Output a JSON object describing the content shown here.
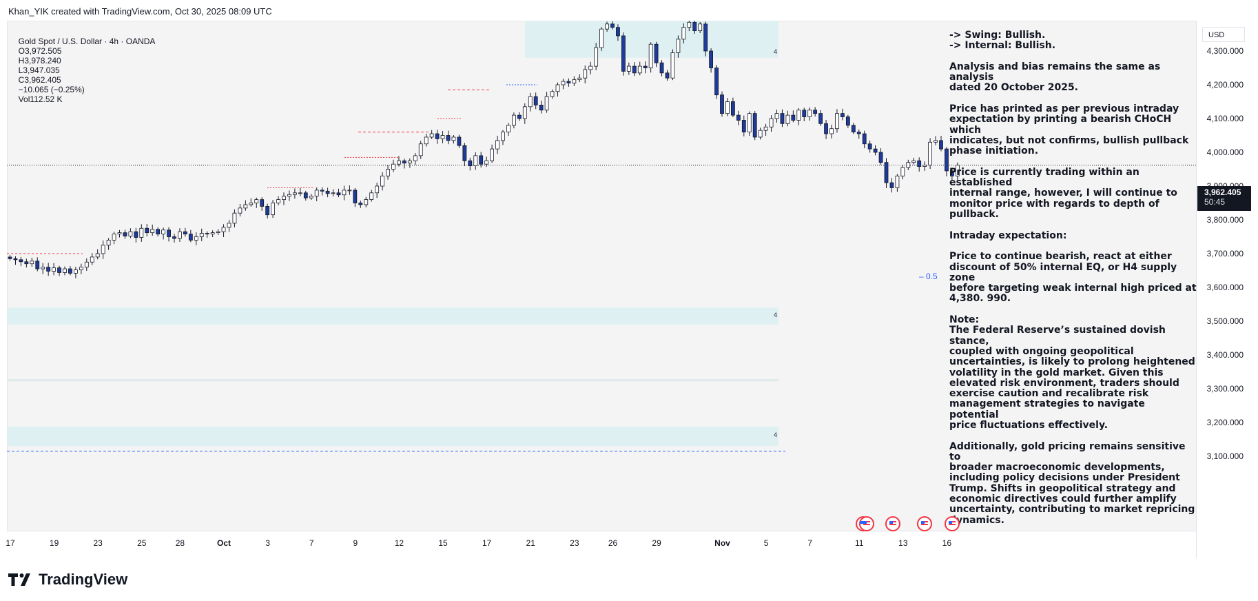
{
  "credit": "Khan_YIK created with TradingView.com, Oct 30, 2025 08:09 UTC",
  "header": {
    "symbol": "Gold Spot / U.S. Dollar · 4h · OANDA",
    "open": "O3,972.505",
    "high": "H3,978.240",
    "low": "L3,947.035",
    "close": "C3,962.405",
    "change": "−10.065 (−0.25%)",
    "volume": "Vol112.52 K"
  },
  "currency": "USD",
  "last_price": {
    "price": "3,962.405",
    "countdown": "50:45"
  },
  "half_label": "0.5",
  "zone_labels": [
    "4",
    "4",
    "4"
  ],
  "logo": "TradingView",
  "colors": {
    "up": "#ffffff",
    "down": "#1e3a9a",
    "wick": "#131722",
    "zone": "#dff0f2",
    "bos": "#f23645",
    "dash": "#2962ff"
  },
  "annotation": [
    [
      "-> Swing:  Bullish.",
      "-> Internal:  Bullish."
    ],
    [
      "Analysis and bias remains the same as analysis",
      "dated 20 October 2025."
    ],
    [
      "Price has printed as per previous intraday",
      "expectation by printing a bearish CHoCH which",
      "indicates, but not confirms, bullish pullback",
      "phase initiation."
    ],
    [
      "Price is currently trading within an established",
      "internal range, however, I will continue to",
      "monitor price with regards to depth of",
      "pullback."
    ],
    [
      "Intraday expectation:"
    ],
    [
      "Price to continue bearish, react at either",
      "discount of 50% internal EQ, or H4 supply zone",
      "before targeting weak internal high priced at",
      "4,380. 990."
    ],
    [
      "Note:",
      "The Federal Reserve’s sustained dovish stance,",
      "coupled with ongoing geopolitical",
      "uncertainties, is likely to prolong heightened",
      "volatility in the gold market. Given this",
      "elevated risk environment, traders should",
      "exercise caution and recalibrate risk",
      "management strategies to navigate potential",
      "price fluctuations effectively."
    ],
    [
      "Additionally, gold pricing remains sensitive to",
      "broader macroeconomic developments,",
      "including policy decisions under President",
      "Trump. Shifts in geopolitical strategy and",
      "economic directives could further amplify",
      "uncertainty, contributing to market repricing",
      "dynamics."
    ]
  ],
  "chart_data": {
    "type": "candlestick",
    "title": "Gold Spot / U.S. Dollar · 4h · OANDA",
    "y_ticks": [
      "4,300.000",
      "4,200.000",
      "4,100.000",
      "4,000.000",
      "3,900.000",
      "3,800.000",
      "3,700.000",
      "3,600.000",
      "3,500.000",
      "3,400.000",
      "3,300.000",
      "3,200.000",
      "3,100.000"
    ],
    "y_tick_values": [
      4300,
      4200,
      4100,
      4000,
      3900,
      3800,
      3700,
      3600,
      3500,
      3400,
      3300,
      3200,
      3100
    ],
    "ylim": [
      3080,
      4410
    ],
    "x_ticks": [
      {
        "label": "17",
        "idx": 0
      },
      {
        "label": "19",
        "idx": 8
      },
      {
        "label": "23",
        "idx": 16
      },
      {
        "label": "25",
        "idx": 24
      },
      {
        "label": "28",
        "idx": 31
      },
      {
        "label": "Oct",
        "idx": 39,
        "bold": true
      },
      {
        "label": "3",
        "idx": 47
      },
      {
        "label": "7",
        "idx": 55
      },
      {
        "label": "9",
        "idx": 63
      },
      {
        "label": "12",
        "idx": 71
      },
      {
        "label": "15",
        "idx": 79
      },
      {
        "label": "17",
        "idx": 87
      },
      {
        "label": "21",
        "idx": 95
      },
      {
        "label": "23",
        "idx": 103
      },
      {
        "label": "26",
        "idx": 110
      },
      {
        "label": "29",
        "idx": 118
      },
      {
        "label": "Nov",
        "idx": 130,
        "bold": true
      },
      {
        "label": "5",
        "idx": 138
      },
      {
        "label": "7",
        "idx": 146
      },
      {
        "label": "11",
        "idx": 155
      },
      {
        "label": "13",
        "idx": 163
      },
      {
        "label": "16",
        "idx": 171
      }
    ],
    "x_count": 172,
    "closes": [
      3685,
      3682,
      3676,
      3670,
      3678,
      3655,
      3660,
      3648,
      3658,
      3644,
      3655,
      3642,
      3652,
      3660,
      3675,
      3690,
      3700,
      3725,
      3740,
      3758,
      3762,
      3752,
      3765,
      3748,
      3775,
      3762,
      3772,
      3758,
      3770,
      3750,
      3745,
      3765,
      3758,
      3740,
      3750,
      3760,
      3758,
      3762,
      3765,
      3778,
      3790,
      3820,
      3835,
      3845,
      3850,
      3860,
      3840,
      3815,
      3850,
      3860,
      3870,
      3875,
      3880,
      3880,
      3865,
      3870,
      3888,
      3885,
      3878,
      3880,
      3874,
      3888,
      3888,
      3850,
      3845,
      3860,
      3880,
      3900,
      3930,
      3950,
      3965,
      3975,
      3968,
      3975,
      3990,
      4025,
      4045,
      4055,
      4040,
      4050,
      4035,
      4045,
      4020,
      3975,
      3960,
      3990,
      3965,
      3975,
      4010,
      4035,
      4060,
      4080,
      4110,
      4100,
      4135,
      4165,
      4140,
      4125,
      4165,
      4180,
      4200,
      4210,
      4205,
      4215,
      4220,
      4245,
      4255,
      4310,
      4365,
      4380,
      4370,
      4345,
      4240,
      4255,
      4235,
      4255,
      4250,
      4320,
      4265,
      4235,
      4220,
      4295,
      4335,
      4370,
      4385,
      4360,
      4380,
      4300,
      4250,
      4170,
      4115,
      4150,
      4110,
      4095,
      4060,
      4115,
      4045,
      4065,
      4075,
      4100,
      4115,
      4085,
      4110,
      4095,
      4125,
      4105,
      4125,
      4115,
      4085,
      4055,
      4070,
      4115,
      4105,
      4080,
      4060,
      4055,
      4025,
      4010,
      4000,
      3970,
      3910,
      3895,
      3930,
      3955,
      3970,
      3975,
      3958,
      3962,
      4030,
      4035,
      4010,
      3945,
      3930,
      3962
    ]
  }
}
